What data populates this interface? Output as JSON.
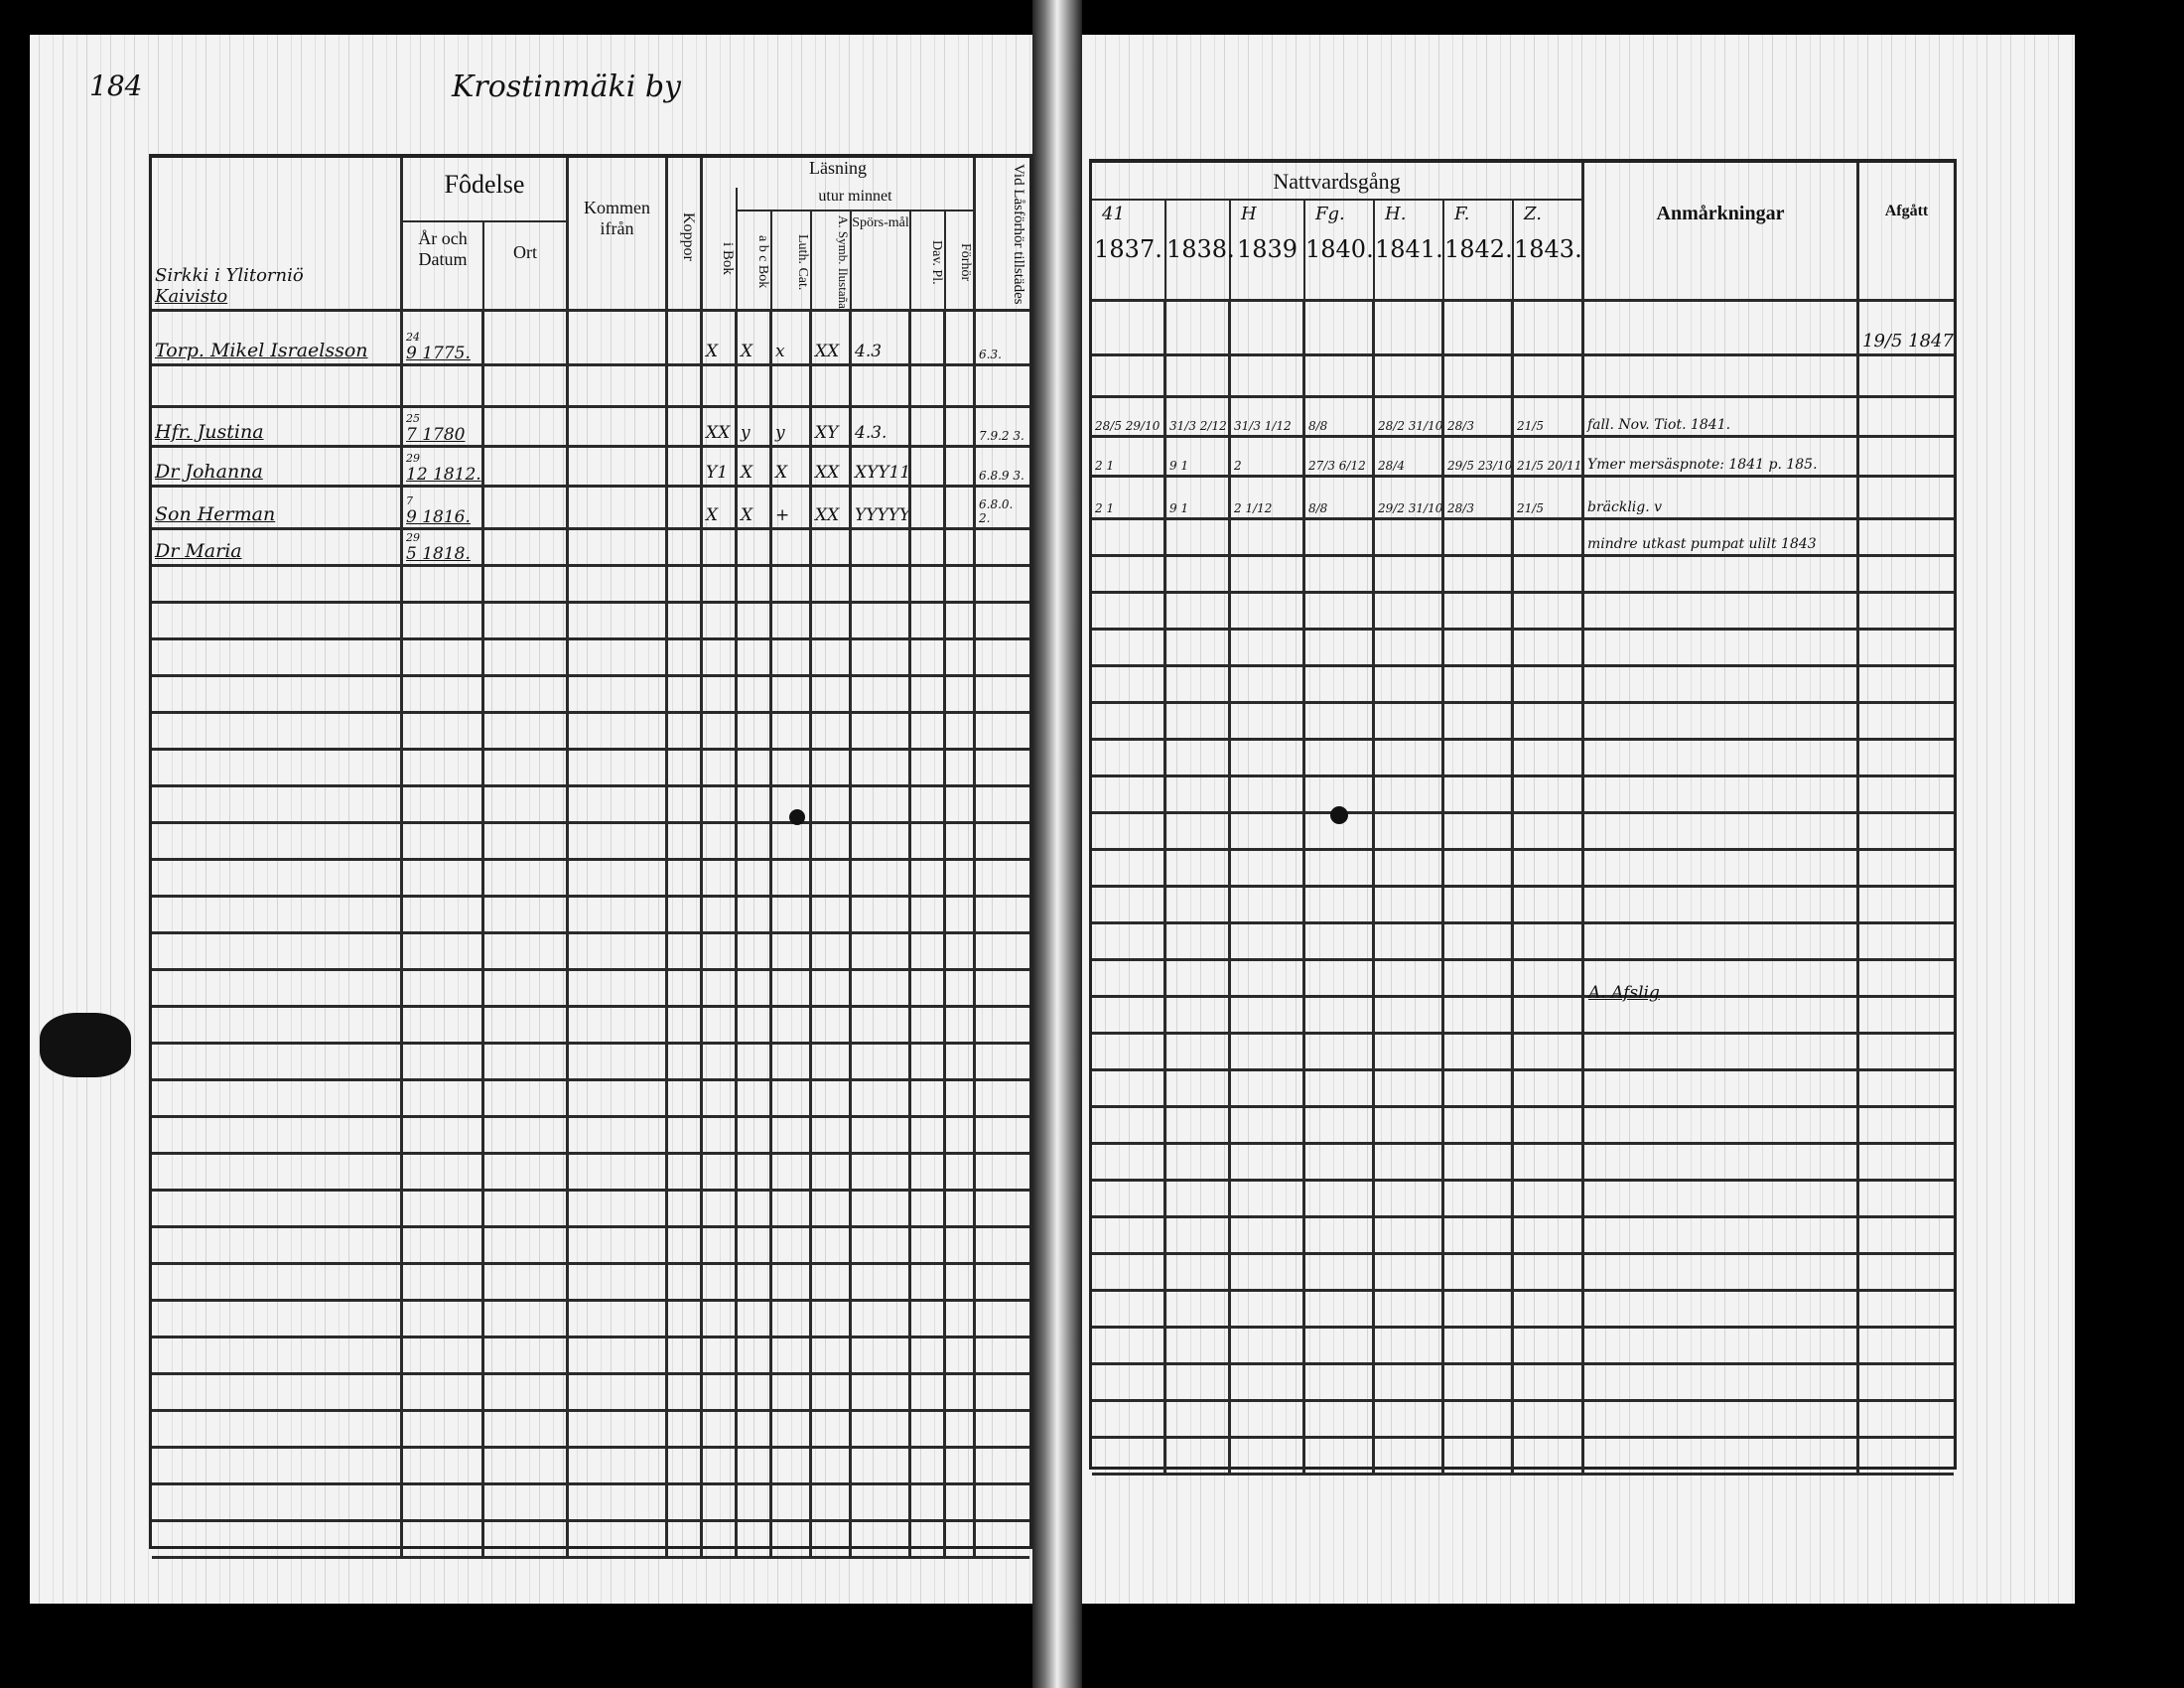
{
  "left_page": {
    "page_number": "184",
    "village": "Krostinmäki by",
    "headers": {
      "fodelse": "Fôdelse",
      "ar_och_datum": "År och Datum",
      "ort": "Ort",
      "kommen_ifran": "Kommen ifrån",
      "koppor": "Koppor",
      "lasning": "Läsning",
      "i_bok": "i Bok",
      "utur_minnet": "utur minnet",
      "abc_bok": "a b c Bok",
      "luth_cat": "Luth. Cat.",
      "a_symb": "A. Symb. Ilustaña",
      "sporsmal": "Spörs-mål",
      "dav_pl": "Dav. Pl.",
      "forhor": "Förhör",
      "vid_lasforhor": "Vid Låsförhör tillstädes"
    },
    "section": [
      "Sirkki i Ylitorniö",
      "Kaivisto"
    ],
    "rows": [
      {
        "name": "Torp. Mikel Israelsson",
        "date_top": "24",
        "date": "9 1775.",
        "i_bok": "X",
        "abc": "X",
        "luth": "x",
        "symb": "XX",
        "sporsmal": "4.3",
        "vid": "6.3."
      },
      {
        "name": "",
        "date_top": "",
        "date": "",
        "i_bok": "",
        "abc": "",
        "luth": "",
        "symb": "",
        "sporsmal": "",
        "vid": ""
      },
      {
        "name": "Hfr. Justina",
        "date_top": "25",
        "date": "7 1780",
        "i_bok": "XX",
        "abc": "y",
        "luth": "y",
        "symb": "XY",
        "sporsmal": "4.3.",
        "vid": "7.9.2 3."
      },
      {
        "name": "Dr Johanna",
        "date_top": "29",
        "date": "12 1812.",
        "i_bok": "Y1",
        "abc": "X",
        "luth": "X",
        "symb": "XX",
        "sporsmal": "XYY111",
        "vid": "6.8.9 3."
      },
      {
        "name": "Son Herman",
        "date_top": "7",
        "date": "9 1816.",
        "i_bok": "X",
        "abc": "X",
        "luth": "+",
        "symb": "XX",
        "sporsmal": "YYYYY1",
        "vid": "6.8.0. 2."
      },
      {
        "name": "Dr Maria",
        "date_top": "29",
        "date": "5 1818.",
        "i_bok": "",
        "abc": "",
        "luth": "",
        "symb": "",
        "sporsmal": "",
        "vid": ""
      }
    ]
  },
  "right_page": {
    "headers": {
      "nattvardsgang": "Nattvardsgång",
      "anmarkningar": "Anmårkningar",
      "afgatt": "Afgått"
    },
    "marks": [
      "41",
      "",
      "H",
      "Fg.",
      "H.",
      "F.",
      "Z."
    ],
    "years": [
      "1837.",
      "1838.",
      "1839",
      "1840.",
      "1841.",
      "1842.",
      "1843."
    ],
    "rows": [
      {
        "cells": [
          "",
          "",
          "",
          "",
          "",
          "",
          ""
        ],
        "note": "",
        "afgatt": "19/5 1847"
      },
      {
        "cells": [
          "",
          "",
          "",
          "",
          "",
          "",
          ""
        ],
        "note": "",
        "afgatt": ""
      },
      {
        "cells": [
          "28/5 29/10",
          "31/3 2/12",
          "31/3 1/12",
          "8/8",
          "28/2 31/10",
          "28/3",
          "21/5"
        ],
        "note": "fall. Nov. Tiot. 1841.",
        "afgatt": ""
      },
      {
        "cells": [
          "2 1",
          "9 1",
          "2",
          "27/3 6/12",
          "28/4",
          "29/5 23/10",
          "21/5 20/11"
        ],
        "note": "Ymer mersäspnote: 1841 p. 185.",
        "afgatt": ""
      },
      {
        "cells": [
          "2 1",
          "9 1",
          "2 1/12",
          "8/8",
          "29/2 31/10",
          "28/3",
          "21/5"
        ],
        "note": "bräcklig. v",
        "afgatt": ""
      },
      {
        "cells": [
          "",
          "",
          "",
          "",
          "",
          "",
          ""
        ],
        "note": "mindre utkast pumpat ulilt 1843",
        "afgatt": ""
      }
    ],
    "signature_note": "A. Afslig"
  }
}
